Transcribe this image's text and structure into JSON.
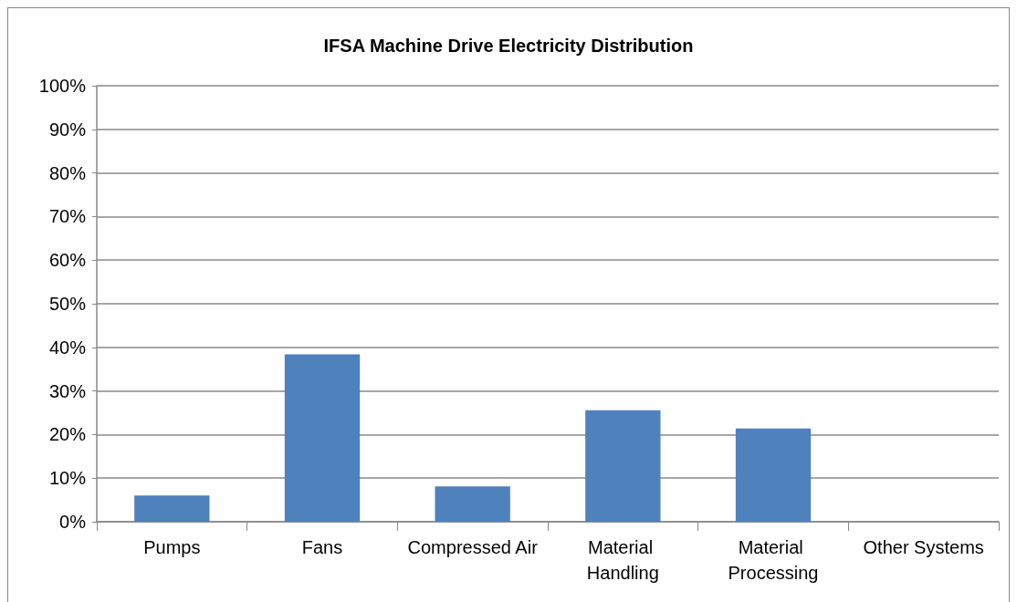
{
  "chart_data": {
    "type": "bar",
    "title": "IFSA Machine Drive Electricity Distribution",
    "categories": [
      "Pumps",
      "Fans",
      "Compressed Air",
      "Material Handling",
      "Material Processing",
      "Other Systems"
    ],
    "values": [
      6,
      38.4,
      8.1,
      25.6,
      21.4,
      0
    ],
    "color": "#4f81bd",
    "ylim": [
      0,
      100
    ],
    "yticks": [
      {
        "value": 0,
        "label": "0%"
      },
      {
        "value": 10,
        "label": "10%"
      },
      {
        "value": 20,
        "label": "20%"
      },
      {
        "value": 30,
        "label": "30%"
      },
      {
        "value": 40,
        "label": "40%"
      },
      {
        "value": 50,
        "label": "50%"
      },
      {
        "value": 60,
        "label": "60%"
      },
      {
        "value": 70,
        "label": "70%"
      },
      {
        "value": 80,
        "label": "80%"
      },
      {
        "value": 90,
        "label": "90%"
      },
      {
        "value": 100,
        "label": "100%"
      }
    ],
    "grid": "y"
  }
}
